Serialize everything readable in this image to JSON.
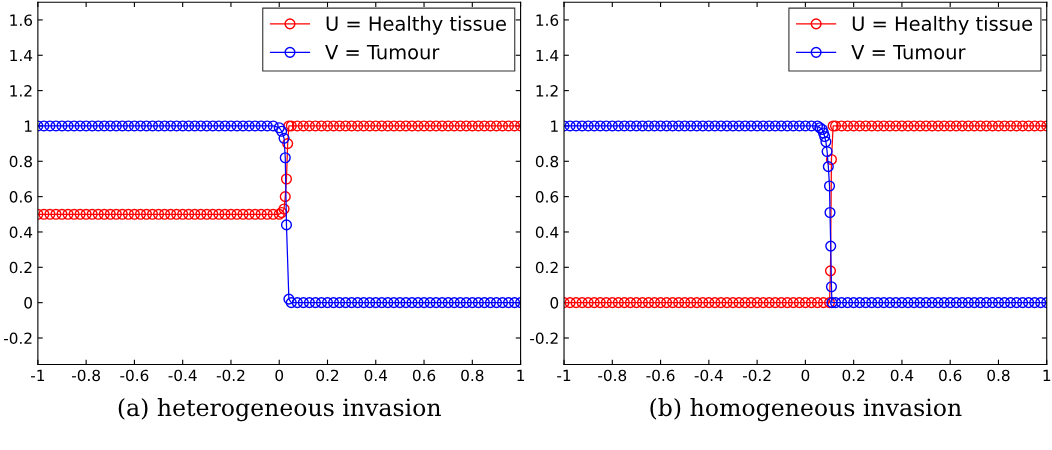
{
  "chart_data": [
    {
      "type": "line",
      "xlabel": "(a) heterogeneous invasion",
      "xlim": [
        -1,
        1
      ],
      "ylim": [
        -0.35,
        1.7
      ],
      "xticks": [
        -1,
        -0.8,
        -0.6,
        -0.4,
        -0.2,
        0,
        0.2,
        0.4,
        0.6,
        0.8,
        1
      ],
      "yticks": [
        -0.2,
        0,
        0.2,
        0.4,
        0.6,
        0.8,
        1,
        1.2,
        1.4,
        1.6
      ],
      "grid": false,
      "legend": "top right",
      "marker": "circle",
      "line_style": "solid",
      "series": [
        {
          "name": "U = Healthy tissue",
          "color": "#ff0000",
          "x": [
            -1,
            -0.975,
            -0.95,
            -0.925,
            -0.9,
            -0.875,
            -0.85,
            -0.825,
            -0.8,
            -0.775,
            -0.75,
            -0.725,
            -0.7,
            -0.675,
            -0.65,
            -0.625,
            -0.6,
            -0.575,
            -0.55,
            -0.525,
            -0.5,
            -0.475,
            -0.45,
            -0.425,
            -0.4,
            -0.375,
            -0.35,
            -0.325,
            -0.3,
            -0.275,
            -0.25,
            -0.225,
            -0.2,
            -0.175,
            -0.15,
            -0.125,
            -0.1,
            -0.075,
            -0.05,
            -0.025,
            0,
            0.01,
            0.02,
            0.025,
            0.03,
            0.035,
            0.04,
            0.05,
            0.075,
            0.1,
            0.125,
            0.15,
            0.175,
            0.2,
            0.225,
            0.25,
            0.275,
            0.3,
            0.325,
            0.35,
            0.375,
            0.4,
            0.425,
            0.45,
            0.475,
            0.5,
            0.525,
            0.55,
            0.575,
            0.6,
            0.625,
            0.65,
            0.675,
            0.7,
            0.725,
            0.75,
            0.775,
            0.8,
            0.825,
            0.85,
            0.875,
            0.9,
            0.925,
            0.95,
            0.975,
            1
          ],
          "values": [
            0.5,
            0.5,
            0.5,
            0.5,
            0.5,
            0.5,
            0.5,
            0.5,
            0.5,
            0.5,
            0.5,
            0.5,
            0.5,
            0.5,
            0.5,
            0.5,
            0.5,
            0.5,
            0.5,
            0.5,
            0.5,
            0.5,
            0.5,
            0.5,
            0.5,
            0.5,
            0.5,
            0.5,
            0.5,
            0.5,
            0.5,
            0.5,
            0.5,
            0.5,
            0.5,
            0.5,
            0.5,
            0.5,
            0.5,
            0.5,
            0.5,
            0.51,
            0.53,
            0.6,
            0.7,
            0.9,
            1,
            1,
            1,
            1,
            1,
            1,
            1,
            1,
            1,
            1,
            1,
            1,
            1,
            1,
            1,
            1,
            1,
            1,
            1,
            1,
            1,
            1,
            1,
            1,
            1,
            1,
            1,
            1,
            1,
            1,
            1,
            1,
            1,
            1,
            1,
            1,
            1,
            1,
            1,
            1
          ]
        },
        {
          "name": "V = Tumour",
          "color": "#0000ff",
          "x": [
            -1,
            -0.975,
            -0.95,
            -0.925,
            -0.9,
            -0.875,
            -0.85,
            -0.825,
            -0.8,
            -0.775,
            -0.75,
            -0.725,
            -0.7,
            -0.675,
            -0.65,
            -0.625,
            -0.6,
            -0.575,
            -0.55,
            -0.525,
            -0.5,
            -0.475,
            -0.45,
            -0.425,
            -0.4,
            -0.375,
            -0.35,
            -0.325,
            -0.3,
            -0.275,
            -0.25,
            -0.225,
            -0.2,
            -0.175,
            -0.15,
            -0.125,
            -0.1,
            -0.075,
            -0.05,
            -0.025,
            0,
            0.01,
            0.02,
            0.025,
            0.03,
            0.04,
            0.05,
            0.075,
            0.1,
            0.125,
            0.15,
            0.175,
            0.2,
            0.225,
            0.25,
            0.275,
            0.3,
            0.325,
            0.35,
            0.375,
            0.4,
            0.425,
            0.45,
            0.475,
            0.5,
            0.525,
            0.55,
            0.575,
            0.6,
            0.625,
            0.65,
            0.675,
            0.7,
            0.725,
            0.75,
            0.775,
            0.8,
            0.825,
            0.85,
            0.875,
            0.9,
            0.925,
            0.95,
            0.975,
            1
          ],
          "values": [
            1,
            1,
            1,
            1,
            1,
            1,
            1,
            1,
            1,
            1,
            1,
            1,
            1,
            1,
            1,
            1,
            1,
            1,
            1,
            1,
            1,
            1,
            1,
            1,
            1,
            1,
            1,
            1,
            1,
            1,
            1,
            1,
            1,
            1,
            1,
            1,
            1,
            1,
            1,
            1,
            0.99,
            0.97,
            0.93,
            0.82,
            0.44,
            0.02,
            0,
            0,
            0,
            0,
            0,
            0,
            0,
            0,
            0,
            0,
            0,
            0,
            0,
            0,
            0,
            0,
            0,
            0,
            0,
            0,
            0,
            0,
            0,
            0,
            0,
            0,
            0,
            0,
            0,
            0,
            0,
            0,
            0,
            0,
            0,
            0,
            0,
            0,
            0
          ]
        }
      ]
    },
    {
      "type": "line",
      "xlabel": "(b) homogeneous invasion",
      "xlim": [
        -1,
        1
      ],
      "ylim": [
        -0.35,
        1.7
      ],
      "xticks": [
        -1,
        -0.8,
        -0.6,
        -0.4,
        -0.2,
        0,
        0.2,
        0.4,
        0.6,
        0.8,
        1
      ],
      "yticks": [
        -0.2,
        0,
        0.2,
        0.4,
        0.6,
        0.8,
        1,
        1.2,
        1.4,
        1.6
      ],
      "grid": false,
      "legend": "top right",
      "marker": "circle",
      "line_style": "solid",
      "series": [
        {
          "name": "U = Healthy tissue",
          "color": "#ff0000",
          "x": [
            -1,
            -0.975,
            -0.95,
            -0.925,
            -0.9,
            -0.875,
            -0.85,
            -0.825,
            -0.8,
            -0.775,
            -0.75,
            -0.725,
            -0.7,
            -0.675,
            -0.65,
            -0.625,
            -0.6,
            -0.575,
            -0.55,
            -0.525,
            -0.5,
            -0.475,
            -0.45,
            -0.425,
            -0.4,
            -0.375,
            -0.35,
            -0.325,
            -0.3,
            -0.275,
            -0.25,
            -0.225,
            -0.2,
            -0.175,
            -0.15,
            -0.125,
            -0.1,
            -0.075,
            -0.05,
            -0.025,
            0,
            0.025,
            0.05,
            0.075,
            0.1,
            0.104,
            0.108,
            0.115,
            0.125,
            0.15,
            0.175,
            0.2,
            0.225,
            0.25,
            0.275,
            0.3,
            0.325,
            0.35,
            0.375,
            0.4,
            0.425,
            0.45,
            0.475,
            0.5,
            0.525,
            0.55,
            0.575,
            0.6,
            0.625,
            0.65,
            0.675,
            0.7,
            0.725,
            0.75,
            0.775,
            0.8,
            0.825,
            0.85,
            0.875,
            0.9,
            0.925,
            0.95,
            0.975,
            1
          ],
          "values": [
            0,
            0,
            0,
            0,
            0,
            0,
            0,
            0,
            0,
            0,
            0,
            0,
            0,
            0,
            0,
            0,
            0,
            0,
            0,
            0,
            0,
            0,
            0,
            0,
            0,
            0,
            0,
            0,
            0,
            0,
            0,
            0,
            0,
            0,
            0,
            0,
            0,
            0,
            0,
            0,
            0,
            0,
            0,
            0,
            0,
            0.18,
            0.81,
            1,
            1,
            1,
            1,
            1,
            1,
            1,
            1,
            1,
            1,
            1,
            1,
            1,
            1,
            1,
            1,
            1,
            1,
            1,
            1,
            1,
            1,
            1,
            1,
            1,
            1,
            1,
            1,
            1,
            1,
            1,
            1,
            1,
            1,
            1,
            1,
            1
          ]
        },
        {
          "name": "V = Tumour",
          "color": "#0000ff",
          "x": [
            -1,
            -0.975,
            -0.95,
            -0.925,
            -0.9,
            -0.875,
            -0.85,
            -0.825,
            -0.8,
            -0.775,
            -0.75,
            -0.725,
            -0.7,
            -0.675,
            -0.65,
            -0.625,
            -0.6,
            -0.575,
            -0.55,
            -0.525,
            -0.5,
            -0.475,
            -0.45,
            -0.425,
            -0.4,
            -0.375,
            -0.35,
            -0.325,
            -0.3,
            -0.275,
            -0.25,
            -0.225,
            -0.2,
            -0.175,
            -0.15,
            -0.125,
            -0.1,
            -0.075,
            -0.05,
            -0.025,
            0,
            0.025,
            0.05,
            0.06,
            0.07,
            0.075,
            0.08,
            0.085,
            0.09,
            0.095,
            0.1,
            0.102,
            0.105,
            0.108,
            0.11,
            0.125,
            0.15,
            0.175,
            0.2,
            0.225,
            0.25,
            0.275,
            0.3,
            0.325,
            0.35,
            0.375,
            0.4,
            0.425,
            0.45,
            0.475,
            0.5,
            0.525,
            0.55,
            0.575,
            0.6,
            0.625,
            0.65,
            0.675,
            0.7,
            0.725,
            0.75,
            0.775,
            0.8,
            0.825,
            0.85,
            0.875,
            0.9,
            0.925,
            0.95,
            0.975,
            1
          ],
          "values": [
            1,
            1,
            1,
            1,
            1,
            1,
            1,
            1,
            1,
            1,
            1,
            1,
            1,
            1,
            1,
            1,
            1,
            1,
            1,
            1,
            1,
            1,
            1,
            1,
            1,
            1,
            1,
            1,
            1,
            1,
            1,
            1,
            1,
            1,
            1,
            1,
            1,
            1,
            1,
            1,
            1,
            1,
            1,
            0.99,
            0.98,
            0.96,
            0.94,
            0.91,
            0.855,
            0.77,
            0.66,
            0.51,
            0.32,
            0.09,
            0,
            0,
            0,
            0,
            0,
            0,
            0,
            0,
            0,
            0,
            0,
            0,
            0,
            0,
            0,
            0,
            0,
            0,
            0,
            0,
            0,
            0,
            0,
            0,
            0,
            0,
            0,
            0,
            0,
            0,
            0,
            0,
            0,
            0,
            0,
            0,
            0
          ]
        }
      ]
    }
  ]
}
